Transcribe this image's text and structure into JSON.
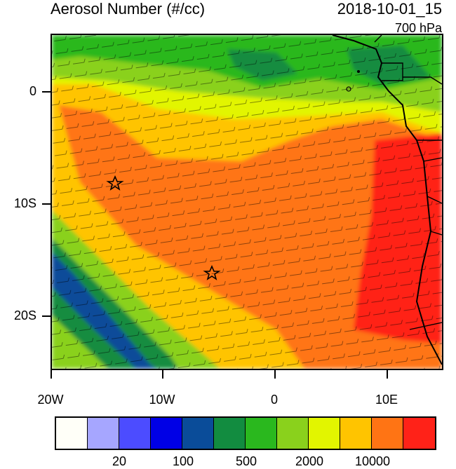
{
  "header": {
    "title": "Aerosol Number (#/cc)",
    "datetime": "2018-10-01_15",
    "level": "700 hPa"
  },
  "axes": {
    "y_labels": [
      "0",
      "10S",
      "20S"
    ],
    "x_labels": [
      "20W",
      "10W",
      "0",
      "10E"
    ]
  },
  "colorbar": {
    "colors": [
      "#fffff8",
      "#a6a6ff",
      "#4c4cff",
      "#0000e6",
      "#0a4c99",
      "#128c40",
      "#2ab81e",
      "#8ad11c",
      "#e2f500",
      "#ffc400",
      "#ff7414",
      "#ff2218"
    ],
    "labels": [
      "20",
      "100",
      "500",
      "2000",
      "10000"
    ]
  },
  "map": {
    "legend_bands": {
      "green": "#2ab81e",
      "light_green": "#8ad11c",
      "yellow": "#e2f500",
      "orange_light": "#ffc400",
      "orange": "#ff7414",
      "red": "#ff2218",
      "dark_blue": "#0a4c99",
      "dark_green": "#128c40"
    },
    "markers": [
      "star-marker",
      "star-marker"
    ]
  }
}
